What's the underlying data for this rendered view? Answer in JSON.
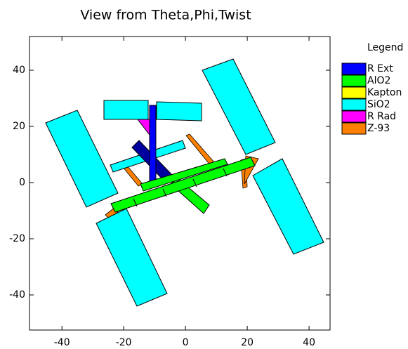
{
  "chart_data": {
    "type": "render",
    "title": "View from Theta,Phi,Twist",
    "xlim": [
      -50.5,
      46.8
    ],
    "xticks": [
      -40,
      -20,
      0,
      20,
      40
    ],
    "ylim": [
      -52.5,
      52
    ],
    "yticks": [
      -40,
      -20,
      0,
      20,
      40
    ],
    "legend": {
      "title": "Legend",
      "items": [
        {
          "name": "R Ext",
          "color": "#0000ff"
        },
        {
          "name": "AlO2",
          "color": "#00ff00"
        },
        {
          "name": "Kapton",
          "color": "#ffff00"
        },
        {
          "name": "SiO2",
          "color": "#00ffff"
        },
        {
          "name": "R Rad",
          "color": "#ff00ff"
        },
        {
          "name": "Z-93",
          "color": "#ff8000"
        }
      ]
    }
  }
}
